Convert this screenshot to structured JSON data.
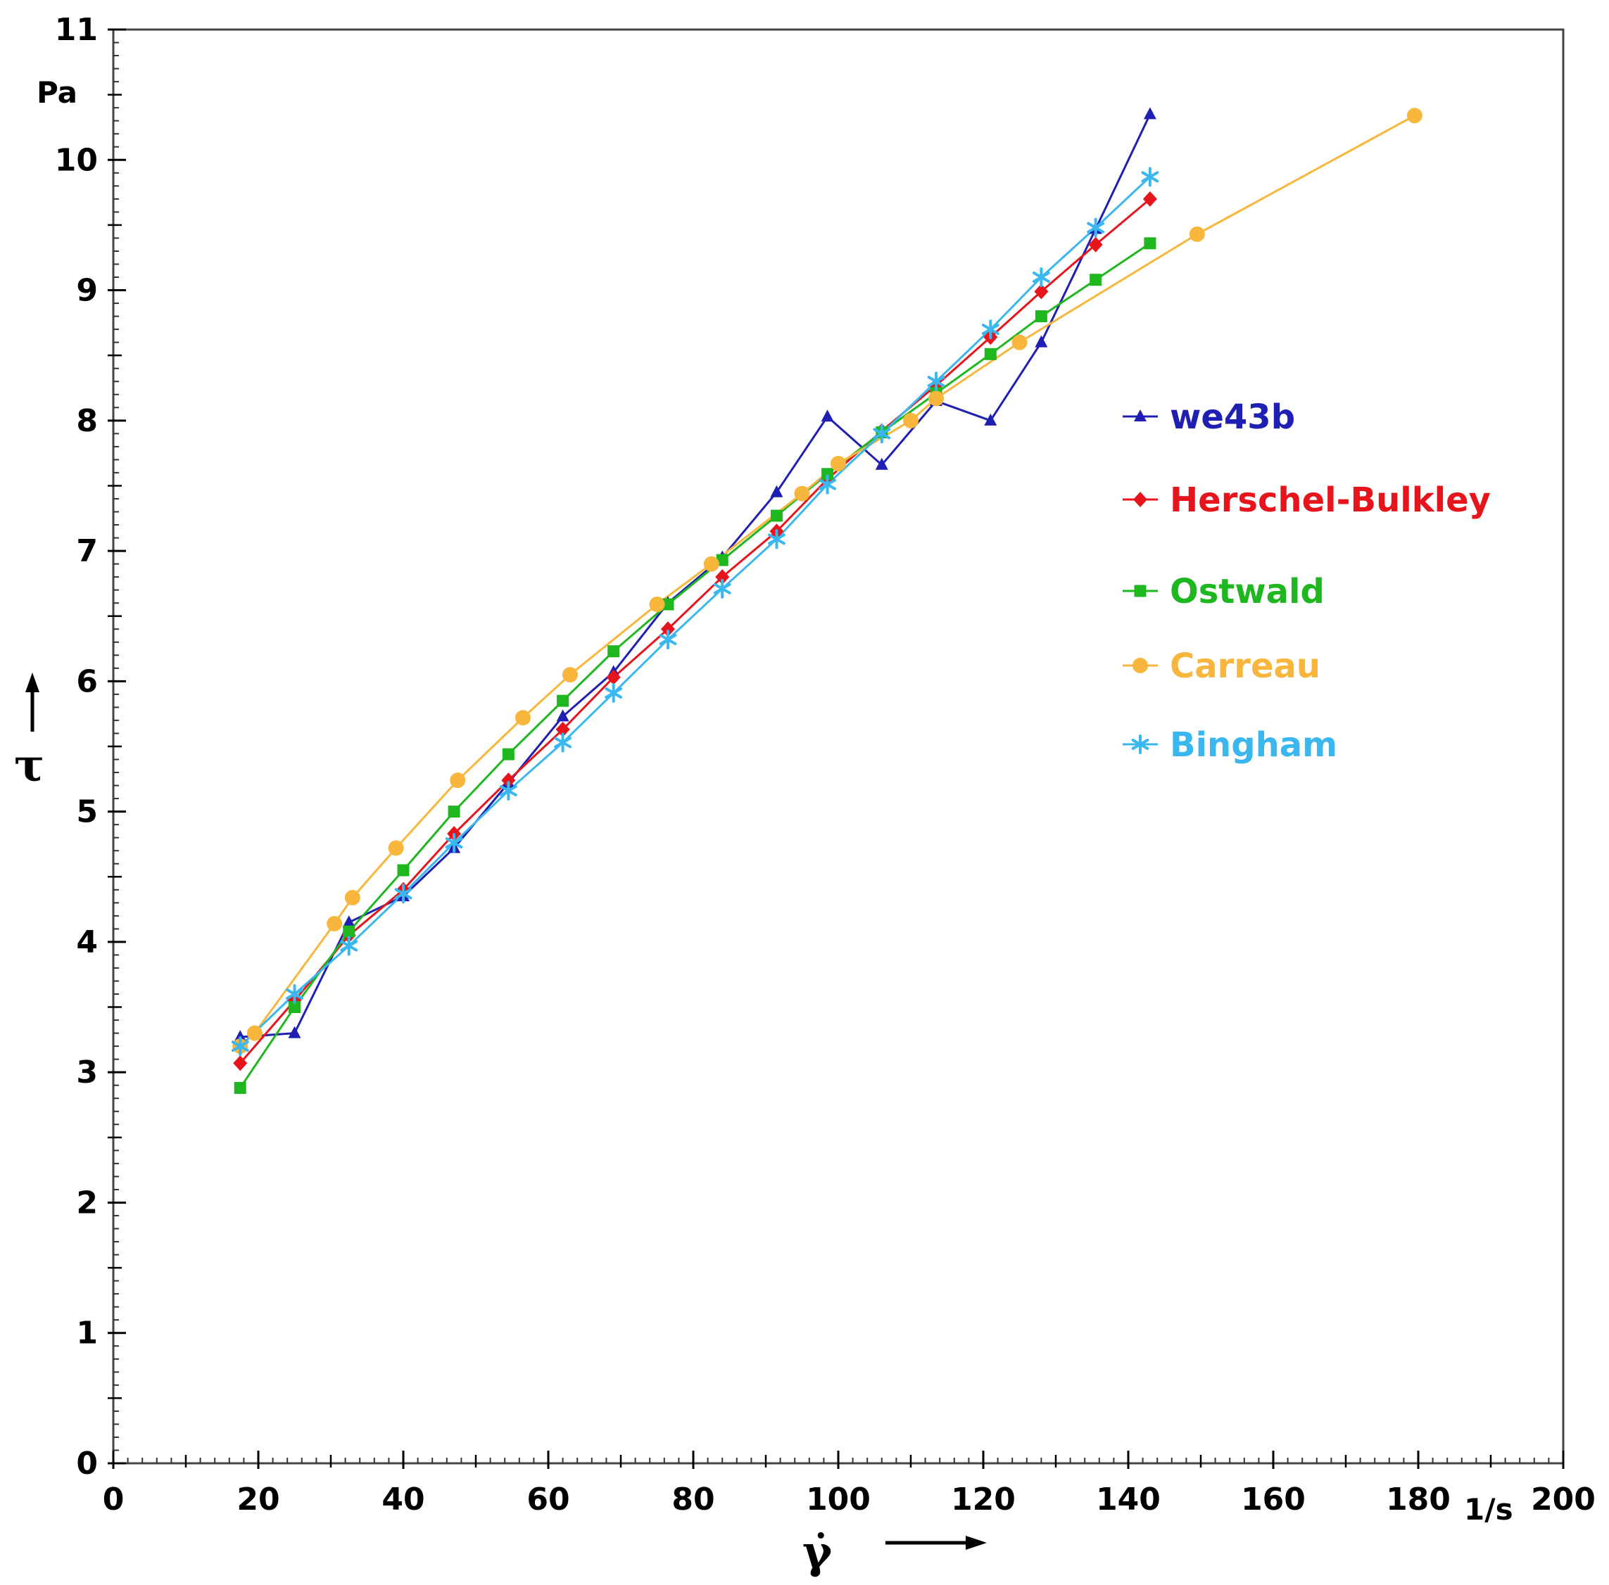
{
  "chart_data": {
    "type": "line",
    "title": "",
    "xlabel": "γ̇",
    "ylabel": "τ",
    "x_unit": "1/s",
    "y_unit": "Pa",
    "xlim": [
      0,
      200
    ],
    "ylim": [
      0,
      11
    ],
    "x_ticks": [
      "0",
      "20",
      "40",
      "60",
      "80",
      "100",
      "120",
      "140",
      "160",
      "180",
      "200"
    ],
    "y_ticks": [
      "0",
      "1",
      "2",
      "3",
      "4",
      "5",
      "6",
      "7",
      "8",
      "9",
      "10",
      "11"
    ],
    "x_tick_values": [
      0,
      20,
      40,
      60,
      80,
      100,
      120,
      140,
      160,
      180,
      200
    ],
    "y_tick_values": [
      0,
      1,
      2,
      3,
      4,
      5,
      6,
      7,
      8,
      9,
      10,
      11
    ],
    "legend_position": "right",
    "series": [
      {
        "name": "we43b",
        "color": "#1f1fb4",
        "marker": "triangle",
        "x": [
          17.5,
          25,
          32.5,
          40,
          47,
          54.5,
          62,
          69,
          76.5,
          84,
          91.5,
          98.5,
          106,
          113.5,
          121,
          128,
          135.5,
          143
        ],
        "y": [
          3.27,
          3.3,
          4.15,
          4.35,
          4.72,
          5.22,
          5.73,
          6.07,
          6.6,
          6.95,
          7.45,
          8.03,
          7.66,
          8.15,
          8.0,
          8.6,
          9.47,
          10.35
        ]
      },
      {
        "name": "Herschel-Bulkley",
        "color": "#e8141c",
        "marker": "diamond",
        "x": [
          17.5,
          25,
          32.5,
          40,
          47,
          54.5,
          62,
          69,
          76.5,
          84,
          91.5,
          98.5,
          106,
          113.5,
          121,
          128,
          135.5,
          143
        ],
        "y": [
          3.07,
          3.55,
          4.05,
          4.4,
          4.83,
          5.24,
          5.63,
          6.03,
          6.4,
          6.8,
          7.15,
          7.55,
          7.92,
          8.27,
          8.64,
          8.99,
          9.35,
          9.7
        ]
      },
      {
        "name": "Ostwald",
        "color": "#1fb71f",
        "marker": "square",
        "x": [
          17.5,
          25,
          32.5,
          40,
          47,
          54.5,
          62,
          69,
          76.5,
          84,
          91.5,
          98.5,
          106,
          113.5,
          121,
          128,
          135.5,
          143
        ],
        "y": [
          2.88,
          3.5,
          4.08,
          4.55,
          5.0,
          5.44,
          5.85,
          6.23,
          6.59,
          6.93,
          7.27,
          7.59,
          7.91,
          8.21,
          8.51,
          8.8,
          9.08,
          9.36
        ]
      },
      {
        "name": "Carreau",
        "color": "#f8b73c",
        "marker": "circle",
        "x": [
          17.5,
          19.5,
          30.5,
          33,
          39,
          47.5,
          56.5,
          63,
          75,
          82.5,
          95,
          100,
          110,
          113.5,
          125,
          149.5,
          179.5
        ],
        "y": [
          3.2,
          3.3,
          4.14,
          4.34,
          4.72,
          5.24,
          5.72,
          6.05,
          6.59,
          6.9,
          7.44,
          7.67,
          8.0,
          8.17,
          8.6,
          9.43,
          10.34
        ]
      },
      {
        "name": "Bingham",
        "color": "#3ab7ef",
        "marker": "asterisk",
        "x": [
          17.5,
          25,
          32.5,
          40,
          47,
          54.5,
          62,
          69,
          76.5,
          84,
          91.5,
          98.5,
          106,
          113.5,
          121,
          128,
          135.5,
          143
        ],
        "y": [
          3.2,
          3.6,
          3.97,
          4.37,
          4.76,
          5.16,
          5.53,
          5.91,
          6.32,
          6.71,
          7.09,
          7.51,
          7.9,
          8.3,
          8.7,
          9.1,
          9.48,
          9.87
        ]
      }
    ]
  }
}
